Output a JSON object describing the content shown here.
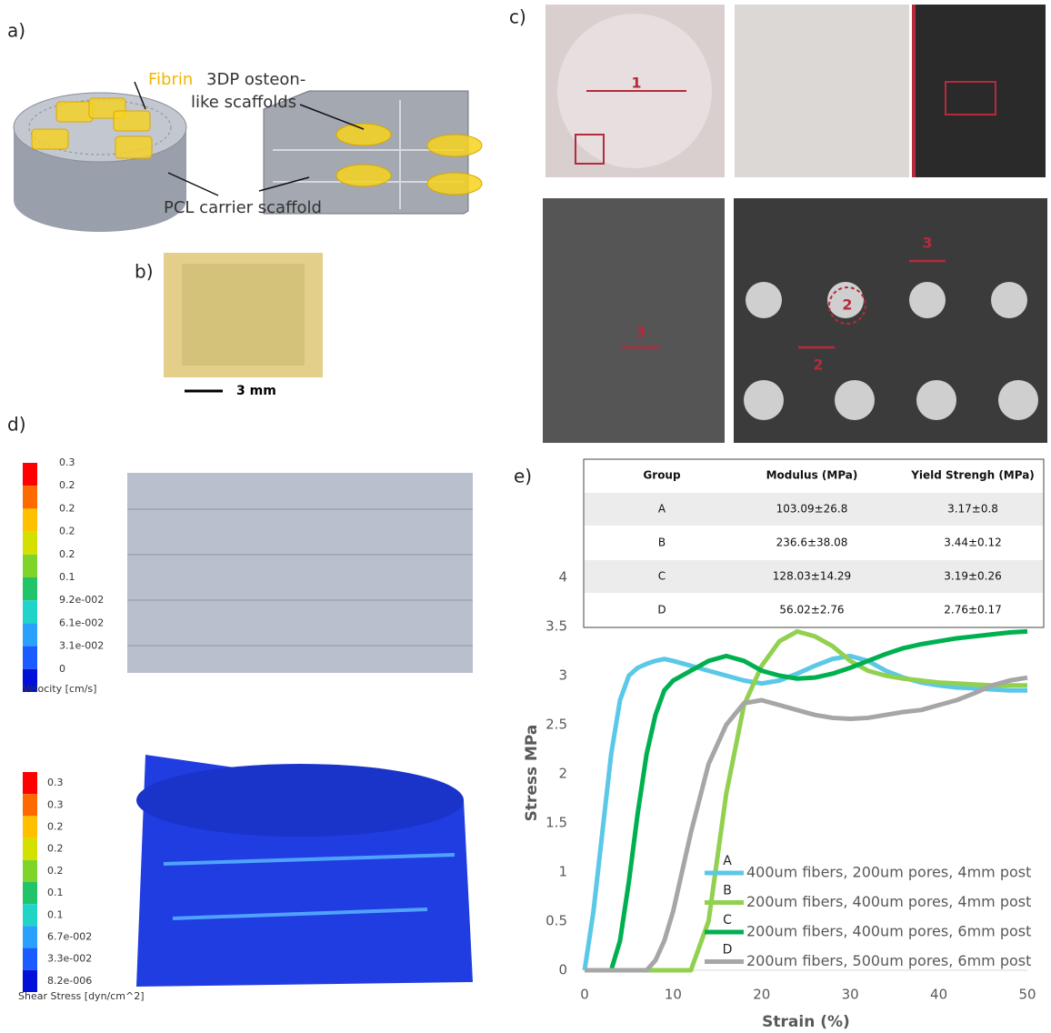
{
  "panel_labels": [
    "a)",
    "b)",
    "c)",
    "d)",
    "e)"
  ],
  "panel_a": {
    "fibrin": "Fibrin",
    "scaffold_line_1": "3DP osteon-",
    "scaffold_line_2": "like scaffolds",
    "carrier": "PCL carrier scaffold"
  },
  "panel_b": {
    "scale_bar": "3 mm"
  },
  "panel_c": {
    "markers": [
      "1",
      "2",
      "2",
      "3",
      "3"
    ]
  },
  "panel_d": {
    "velocity": {
      "ticks": [
        "0.3",
        "0.2",
        "0.2",
        "0.2",
        "0.2",
        "0.1",
        "9.2e-002",
        "6.1e-002",
        "3.1e-002",
        "0"
      ],
      "title": "Velocity [cm/s]"
    },
    "shear": {
      "ticks": [
        "0.3",
        "0.3",
        "0.2",
        "0.2",
        "0.2",
        "0.1",
        "0.1",
        "6.7e-002",
        "3.3e-002",
        "8.2e-006"
      ],
      "title": "Shear Stress [dyn/cm^2]"
    }
  },
  "table": {
    "header": [
      "Group",
      "Modulus (MPa)",
      "Yield Strengh (MPa)"
    ],
    "rows": [
      [
        "A",
        "103.09±26.8",
        "3.17±0.8"
      ],
      [
        "B",
        "236.6±38.08",
        "3.44±0.12"
      ],
      [
        "C",
        "128.03±14.29",
        "3.19±0.26"
      ],
      [
        "D",
        "56.02±2.76",
        "2.76±0.17"
      ]
    ]
  },
  "chart_data": {
    "type": "line",
    "xlabel": "Strain (%)",
    "ylabel": "Stress MPa",
    "x": [
      0,
      1,
      2,
      3,
      4,
      5,
      6,
      7,
      8,
      9,
      10,
      12,
      14,
      16,
      18,
      20,
      22,
      24,
      26,
      28,
      30,
      32,
      34,
      36,
      38,
      40,
      42,
      44,
      46,
      48,
      50
    ],
    "series": [
      {
        "name": "400um fibers, 200um pores, 4mm post",
        "group": "A",
        "color": "#5bc8e8",
        "values": [
          0,
          0.6,
          1.4,
          2.2,
          2.75,
          3.0,
          3.08,
          3.12,
          3.15,
          3.17,
          3.15,
          3.1,
          3.05,
          3.0,
          2.95,
          2.92,
          2.95,
          3.02,
          3.1,
          3.17,
          3.2,
          3.15,
          3.05,
          2.98,
          2.93,
          2.9,
          2.88,
          2.87,
          2.86,
          2.85,
          2.85
        ]
      },
      {
        "name": "200um fibers, 400um pores, 4mm post",
        "group": "B",
        "color": "#92d050",
        "values": [
          0,
          0,
          0,
          0,
          0,
          0,
          0,
          0,
          0,
          0,
          0,
          0,
          0.5,
          1.8,
          2.7,
          3.1,
          3.35,
          3.45,
          3.4,
          3.3,
          3.15,
          3.05,
          3.0,
          2.97,
          2.95,
          2.93,
          2.92,
          2.91,
          2.9,
          2.9,
          2.9
        ]
      },
      {
        "name": "200um fibers, 400um pores, 6mm post",
        "group": "C",
        "color": "#00b050",
        "values": [
          0,
          0,
          0,
          0,
          0.3,
          0.9,
          1.6,
          2.2,
          2.6,
          2.85,
          2.95,
          3.05,
          3.15,
          3.2,
          3.15,
          3.05,
          3.0,
          2.97,
          2.98,
          3.02,
          3.08,
          3.15,
          3.22,
          3.28,
          3.32,
          3.35,
          3.38,
          3.4,
          3.42,
          3.44,
          3.45
        ]
      },
      {
        "name": "200um fibers, 500um pores, 6mm post",
        "group": "D",
        "color": "#a6a6a6",
        "values": [
          0,
          0,
          0,
          0,
          0,
          0,
          0,
          0,
          0.1,
          0.3,
          0.6,
          1.4,
          2.1,
          2.5,
          2.72,
          2.75,
          2.7,
          2.65,
          2.6,
          2.57,
          2.56,
          2.57,
          2.6,
          2.63,
          2.65,
          2.7,
          2.75,
          2.82,
          2.9,
          2.95,
          2.98
        ]
      }
    ],
    "xlim": [
      0,
      50
    ],
    "ylim": [
      0,
      4
    ],
    "xticks": [
      0,
      10,
      20,
      30,
      40,
      50
    ],
    "yticks": [
      0,
      0.5,
      1,
      1.5,
      2,
      2.5,
      3,
      3.5,
      4
    ]
  }
}
